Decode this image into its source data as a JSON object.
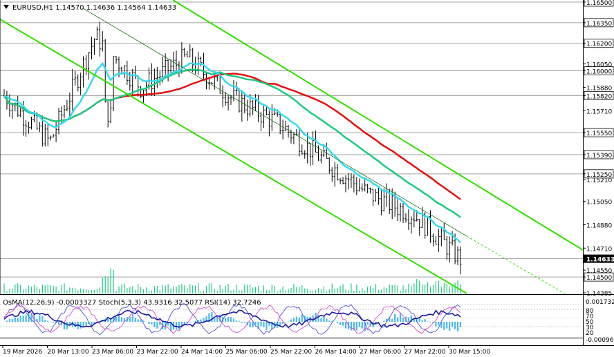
{
  "window": {
    "symbol_header": "EURUSD,H1  1.14570 1.14636 1.14564 1.14633",
    "indicator_header": "OsMA(12,26,9) -0.0003327  Stoch(5,3,3) 43.9316 32.5077  RSI(14) 32.7246"
  },
  "colors": {
    "background": "#ffffff",
    "grid": "#a0a0a0",
    "bars": "#000000",
    "ema_cyan": "#38d8ec",
    "ma_green": "#20c880",
    "ma_red": "#e01010",
    "channel": "#33dd00",
    "osma": "#4ab8e8",
    "stoch_main": "#5050d0",
    "stoch_signal": "#d050d0",
    "rsi": "#1a1aa0"
  },
  "price_axis": {
    "levels": [
      {
        "label": "1.16500",
        "value": 1.165,
        "boxed": true
      },
      {
        "label": "1.16350",
        "value": 1.1635,
        "boxed": true
      },
      {
        "label": "1.16200",
        "value": 1.162,
        "boxed": true
      },
      {
        "label": "1.16050",
        "value": 1.1605,
        "boxed": false
      },
      {
        "label": "1.16000",
        "value": 1.16,
        "boxed": true
      },
      {
        "label": "1.15880",
        "value": 1.1588,
        "boxed": false
      },
      {
        "label": "1.15820",
        "value": 1.1582,
        "boxed": true
      },
      {
        "label": "1.15710",
        "value": 1.1571,
        "boxed": false
      },
      {
        "label": "1.15550",
        "value": 1.1555,
        "boxed": true
      },
      {
        "label": "1.15390",
        "value": 1.1539,
        "boxed": true
      },
      {
        "label": "1.15250",
        "value": 1.1525,
        "boxed": true
      },
      {
        "label": "1.15210",
        "value": 1.1521,
        "boxed": false
      },
      {
        "label": "1.15050",
        "value": 1.1505,
        "boxed": false
      },
      {
        "label": "1.14880",
        "value": 1.1488,
        "boxed": false
      },
      {
        "label": "1.14710",
        "value": 1.1471,
        "boxed": false
      },
      {
        "label": "1.14550",
        "value": 1.1455,
        "boxed": false
      },
      {
        "label": "1.14500",
        "value": 1.145,
        "boxed": true
      },
      {
        "label": "1.14385",
        "value": 1.14385,
        "boxed": false
      }
    ],
    "current_price": "1.14633",
    "current_value": 1.14633
  },
  "time_axis": [
    "19 Mar 2026",
    "20 Mar 13:00",
    "23 Mar 06:00",
    "23 Mar 22:00",
    "24 Mar 14:00",
    "25 Mar 06:00",
    "25 Mar 22:00",
    "26 Mar 14:00",
    "27 Mar 06:00",
    "27 Mar 22:00",
    "30 Mar 15:00"
  ],
  "indicator_axis": {
    "top": "0.0017324",
    "bottom": "-0.00096",
    "levels": [
      "80",
      "70",
      "50",
      "30",
      "20"
    ]
  },
  "chart_data": {
    "type": "line",
    "title": "EURUSD,H1",
    "ylim": [
      1.14385,
      1.1652
    ],
    "x": [
      "19 Mar 2026",
      "20 Mar 13:00",
      "23 Mar 06:00",
      "23 Mar 22:00",
      "24 Mar 14:00",
      "25 Mar 06:00",
      "25 Mar 22:00",
      "26 Mar 14:00",
      "27 Mar 06:00",
      "27 Mar 22:00",
      "30 Mar 15:00"
    ],
    "series": [
      {
        "values": [
          1.1582,
          1.1548,
          1.1625,
          1.1588,
          1.161,
          1.158,
          1.1562,
          1.1535,
          1.151,
          1.1495,
          1.1463
        ]
      }
    ],
    "last_ohlc": {
      "open": 1.1457,
      "high": 1.14636,
      "low": 1.14564,
      "close": 1.14633
    }
  }
}
